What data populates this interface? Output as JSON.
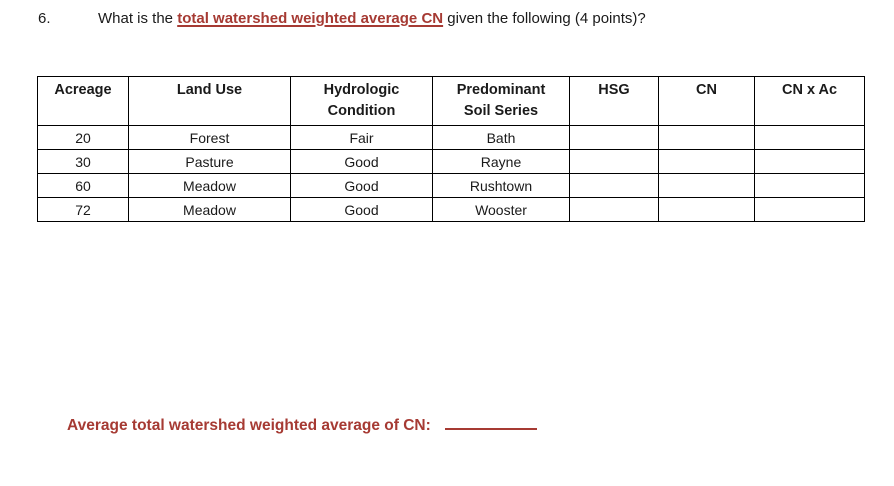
{
  "colors": {
    "accent_red": "#a63a33",
    "text": "#1a1a1a",
    "table_border": "#000000"
  },
  "question": {
    "number": "6.",
    "prefix": "What is the ",
    "highlight": "total watershed weighted average CN",
    "suffix": " given the following (4 points)?"
  },
  "table": {
    "headers": [
      "Acreage",
      "Land Use",
      "Hydrologic\nCondition",
      "Predominant\nSoil Series",
      "HSG",
      "CN",
      "CN x Ac"
    ],
    "rows": [
      [
        "20",
        "Forest",
        "Fair",
        "Bath",
        "",
        "",
        ""
      ],
      [
        "30",
        "Pasture",
        "Good",
        "Rayne",
        "",
        "",
        ""
      ],
      [
        "60",
        "Meadow",
        "Good",
        "Rushtown",
        "",
        "",
        ""
      ],
      [
        "72",
        "Meadow",
        "Good",
        "Wooster",
        "",
        "",
        ""
      ]
    ]
  },
  "footer": {
    "label": "Average total watershed weighted average of CN:"
  }
}
